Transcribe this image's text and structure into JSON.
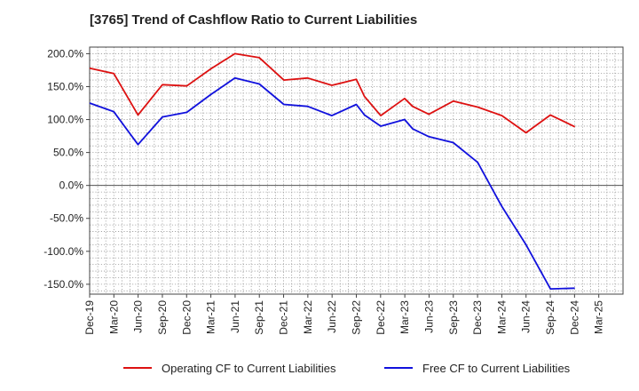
{
  "chart_data": {
    "type": "line",
    "title": "[3765]  Trend of Cashflow Ratio to Current Liabilities",
    "xlabel": "",
    "ylabel": "",
    "x_ticks": [
      "Dec-19",
      "Mar-20",
      "Jun-20",
      "Sep-20",
      "Dec-20",
      "Mar-21",
      "Jun-21",
      "Sep-21",
      "Dec-21",
      "Mar-22",
      "Jun-22",
      "Sep-22",
      "Dec-22",
      "Mar-23",
      "Jun-23",
      "Sep-23",
      "Dec-23",
      "Mar-24",
      "Jun-24",
      "Sep-24",
      "Dec-24",
      "Mar-25"
    ],
    "y_ticks": [
      "200.0%",
      "150.0%",
      "100.0%",
      "50.0%",
      "0.0%",
      "-50.0%",
      "-100.0%",
      "-150.0%"
    ],
    "y_tick_values": [
      200,
      150,
      100,
      50,
      0,
      -50,
      -100,
      -150
    ],
    "ylim": [
      -165,
      210
    ],
    "grid": true,
    "legend_position": "bottom",
    "x": [
      "2019-12-31",
      "2020-03-31",
      "2020-06-30",
      "2020-09-30",
      "2020-12-31",
      "2021-03-31",
      "2021-06-30",
      "2021-09-30",
      "2021-12-31",
      "2022-03-31",
      "2022-06-30",
      "2022-09-30",
      "2022-10-31",
      "2022-12-31",
      "2023-03-31",
      "2023-04-30",
      "2023-06-30",
      "2023-09-30",
      "2023-12-31",
      "2024-03-31",
      "2024-06-30",
      "2024-09-30",
      "2024-12-31"
    ],
    "series": [
      {
        "name": "Operating CF to Current Liabilities",
        "color": "#dd1111",
        "values": [
          178,
          170,
          107,
          153,
          151,
          177,
          200,
          194,
          160,
          163,
          152,
          161,
          135,
          106,
          132,
          120,
          108,
          128,
          119,
          106,
          80,
          107,
          89
        ]
      },
      {
        "name": "Free CF to Current Liabilities",
        "color": "#1111dd",
        "values": [
          125,
          112,
          62,
          104,
          111,
          138,
          163,
          154,
          123,
          120,
          106,
          123,
          107,
          90,
          100,
          86,
          74,
          65,
          35,
          -32,
          -90,
          -157,
          -156
        ]
      }
    ]
  }
}
